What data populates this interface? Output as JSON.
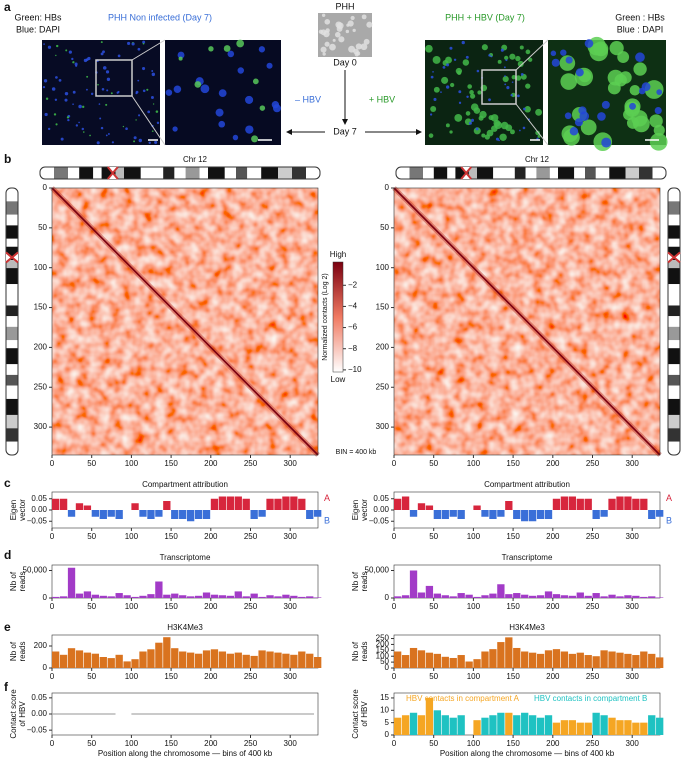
{
  "panel_labels": [
    "a",
    "b",
    "c",
    "d",
    "e",
    "f"
  ],
  "panel_a": {
    "left_legend": [
      "Green: HBs",
      "Blue: DAPI"
    ],
    "noninfected_title": "PHH Non infected (Day 7)",
    "phh": "PHH",
    "day0": "Day 0",
    "day7": "Day 7",
    "minus_hbv": "– HBV",
    "plus_hbv": "+ HBV",
    "infected_title": "PHH + HBV (Day 7)",
    "right_legend": [
      "Green : HBs",
      "Blue : DAPI"
    ]
  },
  "chart_data": [
    {
      "type": "heatmap",
      "title": "Chr 12",
      "xlim": [
        0,
        335
      ],
      "ylim": [
        0,
        335
      ],
      "y_inverted": true,
      "xticks": [
        0,
        50,
        100,
        150,
        200,
        250,
        300
      ],
      "yticks": [
        0,
        50,
        100,
        150,
        200,
        250,
        300
      ],
      "colorbar": {
        "label": "Normalized contacts (Log 2)",
        "high": "High",
        "low": "Low",
        "lim": [
          -10.2,
          0.2
        ],
        "ticks": [
          {
            "value": -2,
            "label": "−2"
          },
          {
            "value": -4,
            "label": "−4"
          },
          {
            "value": -6,
            "label": "−6"
          },
          {
            "value": -8,
            "label": "−8"
          },
          {
            "value": -10,
            "label": "−10"
          }
        ]
      },
      "annotation": "BIN = 400 kb"
    },
    {
      "type": "heatmap",
      "title": "Chr 12",
      "xlim": [
        0,
        335
      ],
      "ylim": [
        0,
        335
      ],
      "y_inverted": true,
      "xticks": [
        0,
        50,
        100,
        150,
        200,
        250,
        300
      ],
      "yticks": [
        0,
        50,
        100,
        150,
        200,
        250,
        300
      ]
    },
    {
      "type": "bar",
      "title": "Compartment attribution",
      "ylabel": [
        "Eigen",
        "vector"
      ],
      "legend": "right",
      "x": [
        0,
        10,
        20,
        30,
        40,
        50,
        60,
        70,
        80,
        90,
        100,
        110,
        120,
        130,
        140,
        150,
        160,
        170,
        180,
        190,
        200,
        210,
        220,
        230,
        240,
        250,
        260,
        270,
        280,
        290,
        300,
        310,
        320,
        330
      ],
      "xlim": [
        0,
        335
      ],
      "xticks": [
        0,
        50,
        100,
        150,
        200,
        250,
        300
      ],
      "ylim": [
        -0.08,
        0.08
      ],
      "yticks": [
        {
          "value": 0.05,
          "label": "0.05"
        },
        {
          "value": 0,
          "label": "0.00"
        },
        {
          "value": -0.05,
          "label": "−0.05"
        }
      ],
      "series": [
        {
          "name": "A",
          "color": "#d7263d",
          "values": [
            0.05,
            0.05,
            null,
            0.03,
            0.02,
            null,
            null,
            null,
            null,
            null,
            0.03,
            null,
            null,
            null,
            0.04,
            null,
            null,
            null,
            null,
            null,
            0.05,
            0.06,
            0.06,
            0.06,
            0.05,
            null,
            null,
            0.05,
            0.05,
            0.06,
            0.06,
            0.05,
            null,
            null
          ]
        },
        {
          "name": "B",
          "color": "#3a6fd8",
          "values": [
            null,
            null,
            -0.03,
            null,
            null,
            -0.03,
            -0.04,
            -0.03,
            -0.04,
            null,
            null,
            -0.03,
            -0.04,
            -0.03,
            null,
            -0.04,
            -0.04,
            -0.05,
            -0.04,
            -0.04,
            null,
            null,
            null,
            null,
            null,
            -0.04,
            -0.03,
            null,
            null,
            null,
            null,
            null,
            -0.04,
            -0.03
          ]
        }
      ]
    },
    {
      "type": "bar",
      "title": "Compartment attribution",
      "ylabel": [
        "Eigen",
        "vector"
      ],
      "legend": "right",
      "x": [
        0,
        10,
        20,
        30,
        40,
        50,
        60,
        70,
        80,
        90,
        100,
        110,
        120,
        130,
        140,
        150,
        160,
        170,
        180,
        190,
        200,
        210,
        220,
        230,
        240,
        250,
        260,
        270,
        280,
        290,
        300,
        310,
        320,
        330
      ],
      "xlim": [
        0,
        335
      ],
      "xticks": [
        0,
        50,
        100,
        150,
        200,
        250,
        300
      ],
      "ylim": [
        -0.08,
        0.08
      ],
      "yticks": [
        {
          "value": 0.05,
          "label": "0.05"
        },
        {
          "value": 0,
          "label": "0.00"
        },
        {
          "value": -0.05,
          "label": "−0.05"
        }
      ],
      "series": [
        {
          "name": "A",
          "color": "#d7263d",
          "values": [
            0.05,
            0.06,
            null,
            0.03,
            0.02,
            null,
            null,
            null,
            null,
            null,
            0.02,
            null,
            null,
            null,
            0.04,
            null,
            null,
            null,
            null,
            null,
            0.05,
            0.06,
            0.06,
            0.05,
            0.05,
            null,
            null,
            0.05,
            0.06,
            0.06,
            0.05,
            0.05,
            null,
            null
          ]
        },
        {
          "name": "B",
          "color": "#3a6fd8",
          "values": [
            null,
            null,
            -0.03,
            null,
            null,
            -0.04,
            -0.04,
            -0.03,
            -0.04,
            null,
            null,
            -0.03,
            -0.04,
            -0.03,
            null,
            -0.04,
            -0.05,
            -0.05,
            -0.04,
            -0.04,
            null,
            null,
            null,
            null,
            null,
            -0.04,
            -0.03,
            null,
            null,
            null,
            null,
            null,
            -0.04,
            -0.03
          ]
        }
      ]
    },
    {
      "type": "bar",
      "title": "Transcriptome",
      "ylabel": [
        "Nb of",
        "reads"
      ],
      "x": [
        0,
        10,
        20,
        30,
        40,
        50,
        60,
        70,
        80,
        90,
        100,
        110,
        120,
        130,
        140,
        150,
        160,
        170,
        180,
        190,
        200,
        210,
        220,
        230,
        240,
        250,
        260,
        270,
        280,
        290,
        300,
        310,
        320,
        330
      ],
      "xlim": [
        0,
        335
      ],
      "xticks": [
        0,
        50,
        100,
        150,
        200,
        250,
        300
      ],
      "ylim": [
        0,
        60000
      ],
      "yticks": [
        0,
        {
          "value": 50000,
          "label": "50,000"
        }
      ],
      "series": [
        {
          "name": "Transcriptome",
          "color": "#a23bc7",
          "values": [
            2000,
            3000,
            55000,
            8000,
            12000,
            6000,
            4000,
            3000,
            9000,
            5000,
            2000,
            4000,
            7000,
            30000,
            6000,
            8000,
            5000,
            3000,
            4000,
            10000,
            6000,
            5000,
            4000,
            12000,
            3000,
            8000,
            2000,
            5000,
            3000,
            6000,
            4000,
            2000,
            3000,
            1000
          ]
        }
      ]
    },
    {
      "type": "bar",
      "title": "Transcriptome",
      "ylabel": [
        "Nb of",
        "reads"
      ],
      "x": [
        0,
        10,
        20,
        30,
        40,
        50,
        60,
        70,
        80,
        90,
        100,
        110,
        120,
        130,
        140,
        150,
        160,
        170,
        180,
        190,
        200,
        210,
        220,
        230,
        240,
        250,
        260,
        270,
        280,
        290,
        300,
        310,
        320,
        330
      ],
      "xlim": [
        0,
        335
      ],
      "xticks": [
        0,
        50,
        100,
        150,
        200,
        250,
        300
      ],
      "ylim": [
        0,
        60000
      ],
      "yticks": [
        0,
        {
          "value": 50000,
          "label": "50,000"
        }
      ],
      "series": [
        {
          "name": "Transcriptome",
          "color": "#a23bc7",
          "values": [
            3000,
            5000,
            50000,
            10000,
            22000,
            8000,
            5000,
            3000,
            9000,
            6000,
            2000,
            5000,
            8000,
            25000,
            7000,
            9000,
            6000,
            4000,
            5000,
            12000,
            7000,
            5000,
            4000,
            10000,
            4000,
            9000,
            3000,
            6000,
            3000,
            5000,
            4000,
            2000,
            3000,
            1000
          ]
        }
      ]
    },
    {
      "type": "bar",
      "title": "H3K4Me3",
      "ylabel": [
        "Nb of",
        "reads"
      ],
      "x": [
        0,
        10,
        20,
        30,
        40,
        50,
        60,
        70,
        80,
        90,
        100,
        110,
        120,
        130,
        140,
        150,
        160,
        170,
        180,
        190,
        200,
        210,
        220,
        230,
        240,
        250,
        260,
        270,
        280,
        290,
        300,
        310,
        320,
        330
      ],
      "xlim": [
        0,
        335
      ],
      "xticks": [
        0,
        50,
        100,
        150,
        200,
        250,
        300
      ],
      "ylim": [
        0,
        300
      ],
      "yticks": [
        0,
        200
      ],
      "series": [
        {
          "name": "H3K4Me3",
          "color": "#d9731f",
          "values": [
            150,
            120,
            180,
            160,
            140,
            130,
            100,
            90,
            120,
            60,
            80,
            150,
            170,
            230,
            280,
            180,
            150,
            140,
            130,
            160,
            170,
            150,
            130,
            140,
            120,
            110,
            160,
            150,
            140,
            130,
            120,
            150,
            130,
            100
          ]
        }
      ]
    },
    {
      "type": "bar",
      "title": "H3K4Me3",
      "ylabel": [
        "Nb of",
        "reads"
      ],
      "x": [
        0,
        10,
        20,
        30,
        40,
        50,
        60,
        70,
        80,
        90,
        100,
        110,
        120,
        130,
        140,
        150,
        160,
        170,
        180,
        190,
        200,
        210,
        220,
        230,
        240,
        250,
        260,
        270,
        280,
        290,
        300,
        310,
        320,
        330
      ],
      "xlim": [
        0,
        335
      ],
      "xticks": [
        0,
        50,
        100,
        150,
        200,
        250,
        300
      ],
      "ylim": [
        0,
        280
      ],
      "yticks": [
        0,
        50,
        100,
        150,
        200,
        250
      ],
      "series": [
        {
          "name": "H3K4Me3",
          "color": "#d9731f",
          "values": [
            140,
            110,
            170,
            150,
            130,
            120,
            95,
            85,
            110,
            55,
            75,
            140,
            160,
            220,
            260,
            170,
            140,
            130,
            120,
            150,
            160,
            140,
            120,
            130,
            110,
            100,
            150,
            140,
            130,
            120,
            110,
            140,
            120,
            90
          ]
        }
      ]
    },
    {
      "type": "line",
      "ylabel": [
        "Contact score",
        "of HBV"
      ],
      "xlabel": "Position along the chromosome — bins of 400 kb",
      "x": [
        0,
        10,
        20,
        30,
        40,
        50,
        60,
        70,
        80,
        90,
        100,
        110,
        120,
        130,
        140,
        150,
        160,
        170,
        180,
        190,
        200,
        210,
        220,
        230,
        240,
        250,
        260,
        270,
        280,
        290,
        300,
        310,
        320,
        330
      ],
      "xlim": [
        0,
        335
      ],
      "xticks": [
        0,
        50,
        100,
        150,
        200,
        250,
        300
      ],
      "ylim": [
        -0.065,
        0.065
      ],
      "yticks": [
        {
          "value": 0.05,
          "label": "0.05"
        },
        {
          "value": 0,
          "label": "0.00"
        },
        {
          "value": -0.05,
          "label": "−0.05"
        }
      ],
      "series": [
        {
          "name": "Contact score of HBV",
          "color": "#aaaaaa",
          "values": [
            0,
            0,
            0,
            0,
            0,
            0,
            0,
            0,
            0,
            null,
            0,
            0,
            0,
            0,
            0,
            0,
            0,
            0,
            0,
            0,
            0,
            0,
            0,
            0,
            0,
            0,
            0,
            0,
            0,
            0,
            0,
            0,
            0,
            0
          ]
        }
      ]
    },
    {
      "type": "bar",
      "ylabel": [
        "Contact score",
        "of HBV"
      ],
      "xlabel": "Position along the chromosome — bins of 400 kb",
      "legend": "top",
      "x": [
        0,
        10,
        20,
        30,
        40,
        50,
        60,
        70,
        80,
        90,
        100,
        110,
        120,
        130,
        140,
        150,
        160,
        170,
        180,
        190,
        200,
        210,
        220,
        230,
        240,
        250,
        260,
        270,
        280,
        290,
        300,
        310,
        320,
        330
      ],
      "xlim": [
        0,
        335
      ],
      "xticks": [
        0,
        50,
        100,
        150,
        200,
        250,
        300
      ],
      "ylim": [
        0,
        17
      ],
      "yticks": [
        0,
        5,
        10,
        15
      ],
      "series": [
        {
          "name": "HBV contacts in compartment A",
          "color": "#f5a623",
          "values": [
            7,
            8,
            null,
            8,
            15,
            null,
            null,
            null,
            null,
            null,
            6,
            null,
            null,
            null,
            9,
            null,
            null,
            null,
            null,
            null,
            5,
            6,
            6,
            5,
            5,
            null,
            null,
            7,
            6,
            6,
            5,
            5,
            null,
            null
          ]
        },
        {
          "name": "HBV contacts in compartment B",
          "color": "#1fc2c2",
          "values": [
            null,
            null,
            9,
            null,
            null,
            10,
            8,
            7,
            8,
            null,
            null,
            7,
            8,
            9,
            null,
            8,
            9,
            8,
            7,
            8,
            null,
            null,
            null,
            null,
            null,
            9,
            8,
            null,
            null,
            null,
            null,
            null,
            8,
            7
          ]
        }
      ]
    }
  ]
}
